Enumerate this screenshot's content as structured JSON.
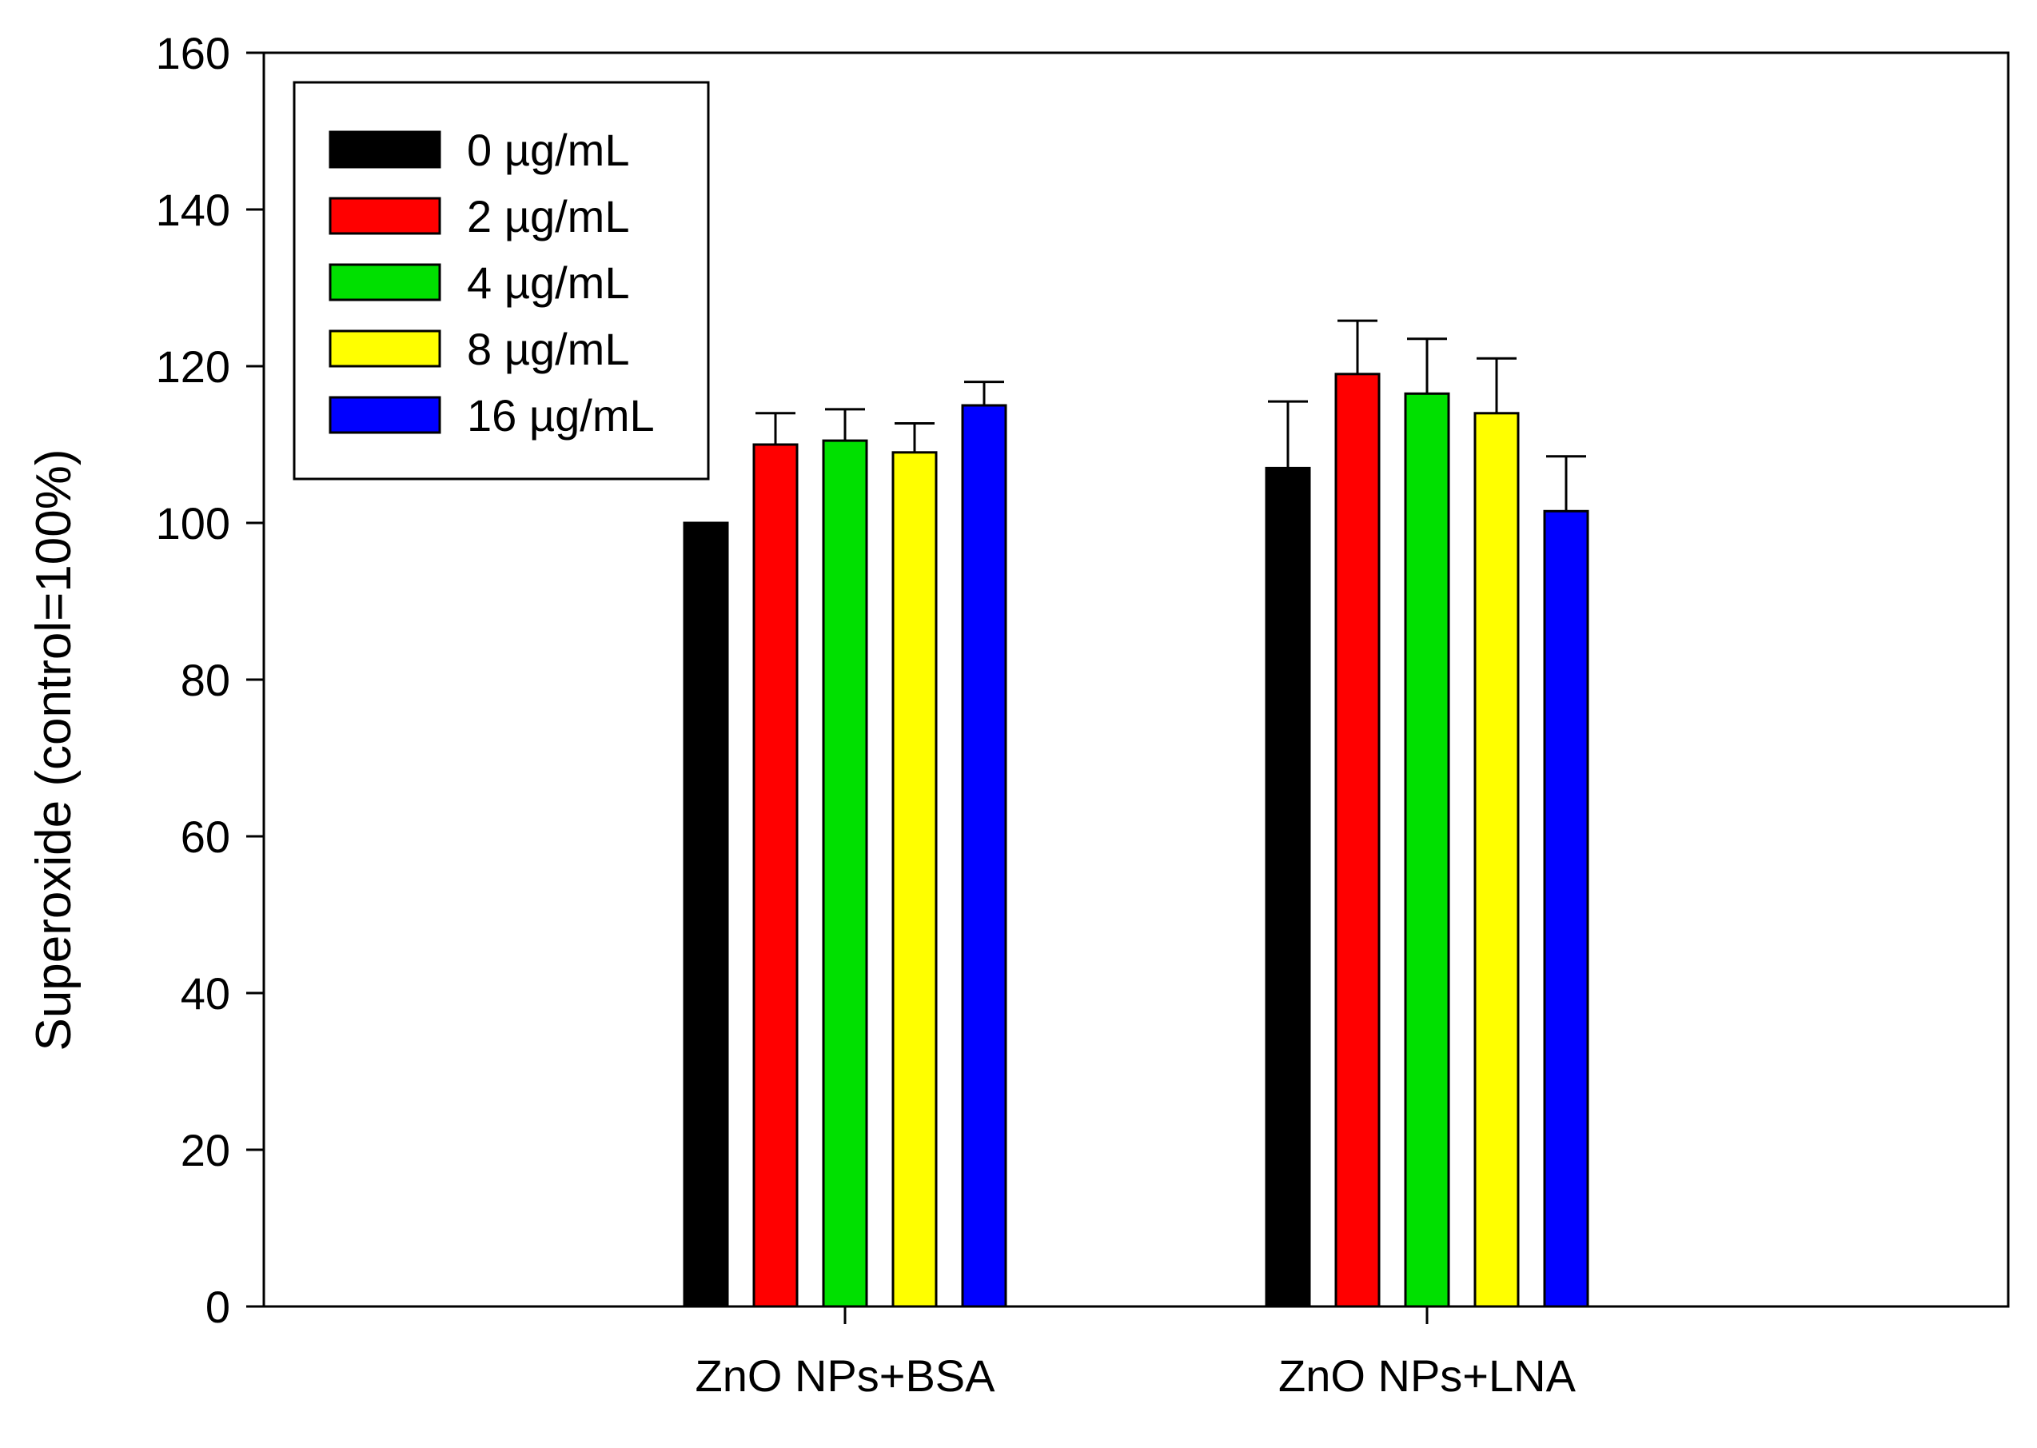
{
  "chart_data": {
    "type": "bar",
    "title": "",
    "xlabel": "",
    "ylabel": "Superoxide (control=100%)",
    "ylim": [
      0,
      160
    ],
    "yticks": [
      0,
      20,
      40,
      60,
      80,
      100,
      120,
      140,
      160
    ],
    "grid": false,
    "legend_position": "top-left",
    "categories": [
      "ZnO NPs+BSA",
      "ZnO NPs+LNA"
    ],
    "series": [
      {
        "name": "0 µg/mL",
        "color": "#000000",
        "values": [
          100,
          107
        ],
        "errors": [
          0,
          8.5
        ]
      },
      {
        "name": "2 µg/mL",
        "color": "#ff0000",
        "values": [
          110,
          119
        ],
        "errors": [
          4,
          6.8
        ]
      },
      {
        "name": "4 µg/mL",
        "color": "#00e000",
        "values": [
          110.5,
          116.5
        ],
        "errors": [
          4,
          7
        ]
      },
      {
        "name": "8 µg/mL",
        "color": "#ffff00",
        "values": [
          109,
          114
        ],
        "errors": [
          3.7,
          7
        ]
      },
      {
        "name": "16 µg/mL",
        "color": "#0000ff",
        "values": [
          115,
          101.5
        ],
        "errors": [
          3,
          7
        ]
      }
    ]
  }
}
